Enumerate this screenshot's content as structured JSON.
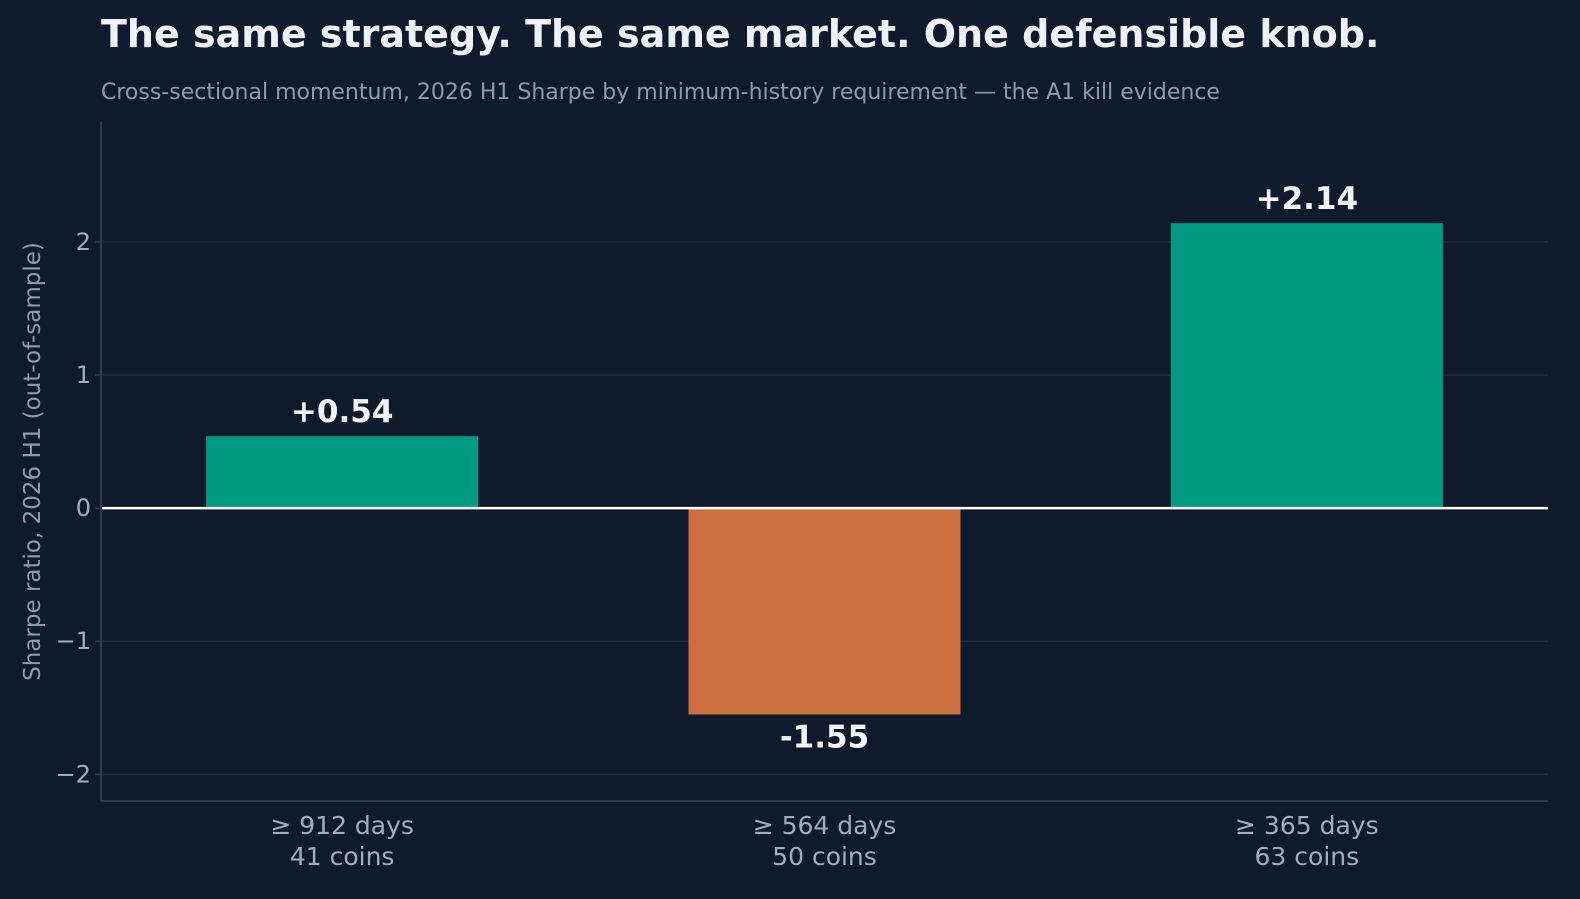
{
  "chart_data": {
    "type": "bar",
    "title": "The same strategy. The same market. One defensible knob.",
    "subtitle": "Cross-sectional momentum, 2026 H1 Sharpe by minimum-history requirement — the A1 kill evidence",
    "ylabel": "Sharpe ratio, 2026 H1 (out-of-sample)",
    "xlabel": "",
    "categories": [
      {
        "line1": "≥ 912 days",
        "line2": "41 coins"
      },
      {
        "line1": "≥ 564 days",
        "line2": "50 coins"
      },
      {
        "line1": "≥ 365 days",
        "line2": "63 coins"
      }
    ],
    "values": [
      0.54,
      -1.55,
      2.14
    ],
    "value_labels": [
      "+0.54",
      "-1.55",
      "+2.14"
    ],
    "ylim": [
      -2.2,
      2.9
    ],
    "yticks": [
      {
        "value": -2,
        "label": "−2"
      },
      {
        "value": -1,
        "label": "−1"
      },
      {
        "value": 0,
        "label": "0"
      },
      {
        "value": 1,
        "label": "1"
      },
      {
        "value": 2,
        "label": "2"
      }
    ],
    "grid": true,
    "colors": {
      "background": "#0f1b2d",
      "positive": "#009b82",
      "negative": "#cd6f3e",
      "grid": "#1f2c40",
      "axis": "#2f3b50",
      "zero_line": "#ffffff"
    }
  }
}
